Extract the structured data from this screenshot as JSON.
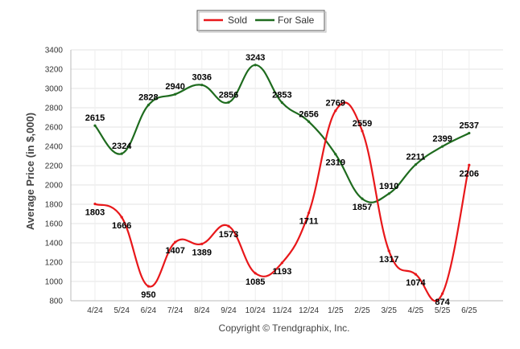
{
  "chart_data": {
    "type": "line",
    "ylabel": "Average Price (in $,000)",
    "xlabel": "",
    "ylim": [
      800,
      3400
    ],
    "yticks": [
      800,
      1000,
      1200,
      1400,
      1600,
      1800,
      2000,
      2200,
      2400,
      2600,
      2800,
      3000,
      3200,
      3400
    ],
    "categories": [
      "4/24",
      "5/24",
      "6/24",
      "7/24",
      "8/24",
      "9/24",
      "10/24",
      "11/24",
      "12/24",
      "1/25",
      "2/25",
      "3/25",
      "4/25",
      "5/25",
      "6/25"
    ],
    "grid": true,
    "legend_position": "top-center",
    "series": [
      {
        "name": "Sold",
        "color": "#e8171a",
        "values": [
          1803,
          1666,
          950,
          1407,
          1389,
          1573,
          1085,
          1193,
          1711,
          2769,
          2559,
          1317,
          1074,
          874,
          2206
        ]
      },
      {
        "name": "For Sale",
        "color": "#1e6b1e",
        "values": [
          2615,
          2324,
          2828,
          2940,
          3036,
          2856,
          3243,
          2853,
          2656,
          2319,
          1857,
          1910,
          2211,
          2399,
          2537
        ]
      }
    ],
    "footer": "Copyright © Trendgraphix, Inc."
  }
}
